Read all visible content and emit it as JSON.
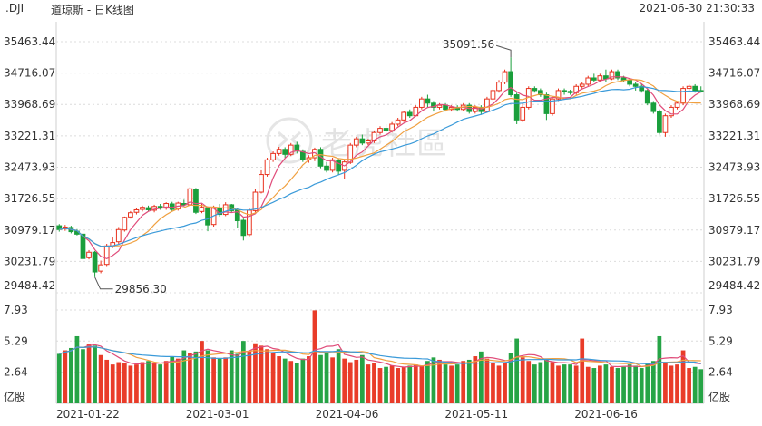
{
  "header": {
    "symbol": ".DJI",
    "name": "道琼斯 - 日K线图",
    "datetime": "2021-06-30 21:30:33"
  },
  "watermark": {
    "text": "老虎社區"
  },
  "colors": {
    "up": "#e8321e",
    "down": "#1a9f3c",
    "ma5": "#e04c7a",
    "ma10": "#f0a040",
    "ma20": "#3a9ad9",
    "grid": "#dcdcdc"
  },
  "chart_data": {
    "type": "candlestick",
    "price_ticks": [
      "35463.44",
      "34716.07",
      "33968.69",
      "33221.31",
      "32473.93",
      "31726.55",
      "30979.17",
      "30231.79",
      "29484.42"
    ],
    "price_range": [
      29484.42,
      35463.44
    ],
    "volume_ticks": [
      "7.93",
      "5.29",
      "2.64"
    ],
    "volume_unit": "亿股",
    "volume_range": [
      0,
      7.93
    ],
    "x_tick_labels": [
      "2021-01-22",
      "2021-03-01",
      "2021-04-06",
      "2021-05-11",
      "2021-06-16"
    ],
    "annotations": [
      {
        "label": "35091.56"
      },
      {
        "label": "29856.30"
      }
    ],
    "candles": [
      {
        "o": 31080,
        "c": 30990,
        "h": 31120,
        "l": 30940,
        "v": 4.2
      },
      {
        "o": 31010,
        "c": 31050,
        "h": 31100,
        "l": 30960,
        "v": 4.5
      },
      {
        "o": 31040,
        "c": 30940,
        "h": 31080,
        "l": 30900,
        "v": 4.7
      },
      {
        "o": 30950,
        "c": 30880,
        "h": 31000,
        "l": 30850,
        "v": 5.7
      },
      {
        "o": 30880,
        "c": 30300,
        "h": 30900,
        "l": 30260,
        "v": 4.6
      },
      {
        "o": 30320,
        "c": 30450,
        "h": 30500,
        "l": 30280,
        "v": 5.0
      },
      {
        "o": 30450,
        "c": 29980,
        "h": 30480,
        "l": 29856,
        "v": 4.9
      },
      {
        "o": 30000,
        "c": 30150,
        "h": 30250,
        "l": 29950,
        "v": 4.1
      },
      {
        "o": 30160,
        "c": 30600,
        "h": 30650,
        "l": 30100,
        "v": 3.7
      },
      {
        "o": 30600,
        "c": 30680,
        "h": 30800,
        "l": 30550,
        "v": 3.3
      },
      {
        "o": 30700,
        "c": 30990,
        "h": 31050,
        "l": 30650,
        "v": 3.5
      },
      {
        "o": 30980,
        "c": 31280,
        "h": 31300,
        "l": 30940,
        "v": 3.4
      },
      {
        "o": 31290,
        "c": 31390,
        "h": 31430,
        "l": 31250,
        "v": 3.2
      },
      {
        "o": 31400,
        "c": 31460,
        "h": 31500,
        "l": 31350,
        "v": 3.3
      },
      {
        "o": 31470,
        "c": 31520,
        "h": 31560,
        "l": 31420,
        "v": 3.5
      },
      {
        "o": 31510,
        "c": 31460,
        "h": 31560,
        "l": 31420,
        "v": 3.6
      },
      {
        "o": 31450,
        "c": 31540,
        "h": 31580,
        "l": 31400,
        "v": 3.4
      },
      {
        "o": 31540,
        "c": 31500,
        "h": 31600,
        "l": 31460,
        "v": 3.3
      },
      {
        "o": 31500,
        "c": 31610,
        "h": 31640,
        "l": 31460,
        "v": 3.6
      },
      {
        "o": 31600,
        "c": 31470,
        "h": 31650,
        "l": 31430,
        "v": 4.0
      },
      {
        "o": 31480,
        "c": 31620,
        "h": 31650,
        "l": 31440,
        "v": 3.8
      },
      {
        "o": 31610,
        "c": 31580,
        "h": 31700,
        "l": 31540,
        "v": 4.5
      },
      {
        "o": 31580,
        "c": 31960,
        "h": 32000,
        "l": 31550,
        "v": 4.3
      },
      {
        "o": 31950,
        "c": 31400,
        "h": 31980,
        "l": 31360,
        "v": 4.4
      },
      {
        "o": 31420,
        "c": 31520,
        "h": 31600,
        "l": 31380,
        "v": 5.3
      },
      {
        "o": 31510,
        "c": 31100,
        "h": 31540,
        "l": 30950,
        "v": 4.5
      },
      {
        "o": 31110,
        "c": 31500,
        "h": 31560,
        "l": 31060,
        "v": 3.9
      },
      {
        "o": 31500,
        "c": 31350,
        "h": 31600,
        "l": 31300,
        "v": 3.8
      },
      {
        "o": 31350,
        "c": 31580,
        "h": 31640,
        "l": 31310,
        "v": 3.9
      },
      {
        "o": 31580,
        "c": 31440,
        "h": 31600,
        "l": 31400,
        "v": 4.5
      },
      {
        "o": 31450,
        "c": 31200,
        "h": 31500,
        "l": 31020,
        "v": 4.2
      },
      {
        "o": 31210,
        "c": 30850,
        "h": 31250,
        "l": 30730,
        "v": 5.3
      },
      {
        "o": 30870,
        "c": 31450,
        "h": 31500,
        "l": 30830,
        "v": 4.4
      },
      {
        "o": 31440,
        "c": 31880,
        "h": 31950,
        "l": 31400,
        "v": 5.1
      },
      {
        "o": 31880,
        "c": 32300,
        "h": 32400,
        "l": 31850,
        "v": 4.9
      },
      {
        "o": 32300,
        "c": 32650,
        "h": 32700,
        "l": 32250,
        "v": 4.6
      },
      {
        "o": 32650,
        "c": 32800,
        "h": 32850,
        "l": 32600,
        "v": 4.3
      },
      {
        "o": 32800,
        "c": 32900,
        "h": 32960,
        "l": 32750,
        "v": 4.0
      },
      {
        "o": 32900,
        "c": 32780,
        "h": 32950,
        "l": 32700,
        "v": 3.8
      },
      {
        "o": 32780,
        "c": 33000,
        "h": 33050,
        "l": 32740,
        "v": 3.6
      },
      {
        "o": 33000,
        "c": 32860,
        "h": 33080,
        "l": 32800,
        "v": 3.4
      },
      {
        "o": 32850,
        "c": 32650,
        "h": 32900,
        "l": 32600,
        "v": 3.8
      },
      {
        "o": 32650,
        "c": 32700,
        "h": 32760,
        "l": 32580,
        "v": 4.0
      },
      {
        "o": 32700,
        "c": 32900,
        "h": 32940,
        "l": 32620,
        "v": 7.9
      },
      {
        "o": 32900,
        "c": 32500,
        "h": 32950,
        "l": 32450,
        "v": 4.1
      },
      {
        "o": 32500,
        "c": 32400,
        "h": 32600,
        "l": 32350,
        "v": 4.4
      },
      {
        "o": 32400,
        "c": 32650,
        "h": 32700,
        "l": 32350,
        "v": 3.9
      },
      {
        "o": 32640,
        "c": 32380,
        "h": 32680,
        "l": 32300,
        "v": 4.6
      },
      {
        "o": 32400,
        "c": 32600,
        "h": 32650,
        "l": 32200,
        "v": 3.8
      },
      {
        "o": 32590,
        "c": 33000,
        "h": 33050,
        "l": 32550,
        "v": 3.5
      },
      {
        "o": 33000,
        "c": 33150,
        "h": 33200,
        "l": 32950,
        "v": 3.7
      },
      {
        "o": 33150,
        "c": 33050,
        "h": 33250,
        "l": 33000,
        "v": 4.1
      },
      {
        "o": 33050,
        "c": 33100,
        "h": 33150,
        "l": 33000,
        "v": 3.3
      },
      {
        "o": 33100,
        "c": 33300,
        "h": 33350,
        "l": 33050,
        "v": 3.4
      },
      {
        "o": 33300,
        "c": 33400,
        "h": 33450,
        "l": 33250,
        "v": 3.0
      },
      {
        "o": 33400,
        "c": 33350,
        "h": 33500,
        "l": 33300,
        "v": 3.1
      },
      {
        "o": 33350,
        "c": 33500,
        "h": 33550,
        "l": 33300,
        "v": 3.2
      },
      {
        "o": 33500,
        "c": 33600,
        "h": 33650,
        "l": 33450,
        "v": 3.0
      },
      {
        "o": 33600,
        "c": 33780,
        "h": 33820,
        "l": 33550,
        "v": 3.1
      },
      {
        "o": 33780,
        "c": 33700,
        "h": 33850,
        "l": 33650,
        "v": 3.2
      },
      {
        "o": 33700,
        "c": 33900,
        "h": 33950,
        "l": 33680,
        "v": 3.3
      },
      {
        "o": 33900,
        "c": 34100,
        "h": 34150,
        "l": 33850,
        "v": 3.2
      },
      {
        "o": 34100,
        "c": 34000,
        "h": 34200,
        "l": 33900,
        "v": 3.6
      },
      {
        "o": 34000,
        "c": 33900,
        "h": 34050,
        "l": 33800,
        "v": 3.9
      },
      {
        "o": 33900,
        "c": 33950,
        "h": 34000,
        "l": 33850,
        "v": 3.7
      },
      {
        "o": 33950,
        "c": 33850,
        "h": 34000,
        "l": 33800,
        "v": 3.3
      },
      {
        "o": 33850,
        "c": 33900,
        "h": 33950,
        "l": 33800,
        "v": 3.2
      },
      {
        "o": 33900,
        "c": 33850,
        "h": 33950,
        "l": 33800,
        "v": 3.3
      },
      {
        "o": 33850,
        "c": 33950,
        "h": 34000,
        "l": 33820,
        "v": 3.6
      },
      {
        "o": 33950,
        "c": 33800,
        "h": 34000,
        "l": 33750,
        "v": 3.7
      },
      {
        "o": 33800,
        "c": 33900,
        "h": 33950,
        "l": 33750,
        "v": 4.0
      },
      {
        "o": 33900,
        "c": 33800,
        "h": 33950,
        "l": 33720,
        "v": 4.4
      },
      {
        "o": 33800,
        "c": 34100,
        "h": 34150,
        "l": 33780,
        "v": 3.8
      },
      {
        "o": 34100,
        "c": 34300,
        "h": 34350,
        "l": 34050,
        "v": 3.4
      },
      {
        "o": 34300,
        "c": 34500,
        "h": 34550,
        "l": 34250,
        "v": 3.2
      },
      {
        "o": 34500,
        "c": 34750,
        "h": 34800,
        "l": 34450,
        "v": 3.4
      },
      {
        "o": 34750,
        "c": 34200,
        "h": 35091.56,
        "l": 34150,
        "v": 4.3
      },
      {
        "o": 34200,
        "c": 33600,
        "h": 34250,
        "l": 33500,
        "v": 5.5
      },
      {
        "o": 33600,
        "c": 33900,
        "h": 34000,
        "l": 33550,
        "v": 3.9
      },
      {
        "o": 33900,
        "c": 34350,
        "h": 34400,
        "l": 33850,
        "v": 3.6
      },
      {
        "o": 34350,
        "c": 34300,
        "h": 34400,
        "l": 34250,
        "v": 3.3
      },
      {
        "o": 34300,
        "c": 34200,
        "h": 34350,
        "l": 34150,
        "v": 3.5
      },
      {
        "o": 34200,
        "c": 33750,
        "h": 34250,
        "l": 33600,
        "v": 3.8
      },
      {
        "o": 33750,
        "c": 34100,
        "h": 34150,
        "l": 33700,
        "v": 3.5
      },
      {
        "o": 34100,
        "c": 34300,
        "h": 34350,
        "l": 34050,
        "v": 3.2
      },
      {
        "o": 34300,
        "c": 34280,
        "h": 34350,
        "l": 34200,
        "v": 3.3
      },
      {
        "o": 34280,
        "c": 34250,
        "h": 34320,
        "l": 34200,
        "v": 3.3
      },
      {
        "o": 34250,
        "c": 34400,
        "h": 34450,
        "l": 34200,
        "v": 3.2
      },
      {
        "o": 34400,
        "c": 34450,
        "h": 34500,
        "l": 34350,
        "v": 5.5
      },
      {
        "o": 34450,
        "c": 34600,
        "h": 34650,
        "l": 34400,
        "v": 3.1
      },
      {
        "o": 34600,
        "c": 34550,
        "h": 34700,
        "l": 34500,
        "v": 3.0
      },
      {
        "o": 34550,
        "c": 34650,
        "h": 34700,
        "l": 34500,
        "v": 3.2
      },
      {
        "o": 34650,
        "c": 34580,
        "h": 34800,
        "l": 34500,
        "v": 3.3
      },
      {
        "o": 34580,
        "c": 34750,
        "h": 34800,
        "l": 34550,
        "v": 3.1
      },
      {
        "o": 34750,
        "c": 34600,
        "h": 34800,
        "l": 34550,
        "v": 3.0
      },
      {
        "o": 34600,
        "c": 34550,
        "h": 34650,
        "l": 34500,
        "v": 3.1
      },
      {
        "o": 34550,
        "c": 34450,
        "h": 34600,
        "l": 34400,
        "v": 3.3
      },
      {
        "o": 34450,
        "c": 34400,
        "h": 34500,
        "l": 34300,
        "v": 3.2
      },
      {
        "o": 34400,
        "c": 34300,
        "h": 34450,
        "l": 34250,
        "v": 3.0
      },
      {
        "o": 34300,
        "c": 34000,
        "h": 34350,
        "l": 33950,
        "v": 3.4
      },
      {
        "o": 34000,
        "c": 33800,
        "h": 34050,
        "l": 33750,
        "v": 3.6
      },
      {
        "o": 33800,
        "c": 33300,
        "h": 33850,
        "l": 33250,
        "v": 5.7
      },
      {
        "o": 33300,
        "c": 33700,
        "h": 33750,
        "l": 33200,
        "v": 3.5
      },
      {
        "o": 33700,
        "c": 33900,
        "h": 33950,
        "l": 33650,
        "v": 3.2
      },
      {
        "o": 33900,
        "c": 34000,
        "h": 34050,
        "l": 33850,
        "v": 3.3
      },
      {
        "o": 34000,
        "c": 34350,
        "h": 34400,
        "l": 33950,
        "v": 4.5
      },
      {
        "o": 34350,
        "c": 34400,
        "h": 34450,
        "l": 34300,
        "v": 3.0
      },
      {
        "o": 34400,
        "c": 34300,
        "h": 34450,
        "l": 34250,
        "v": 3.1
      },
      {
        "o": 34300,
        "c": 34292,
        "h": 34400,
        "l": 34250,
        "v": 2.9
      }
    ]
  }
}
